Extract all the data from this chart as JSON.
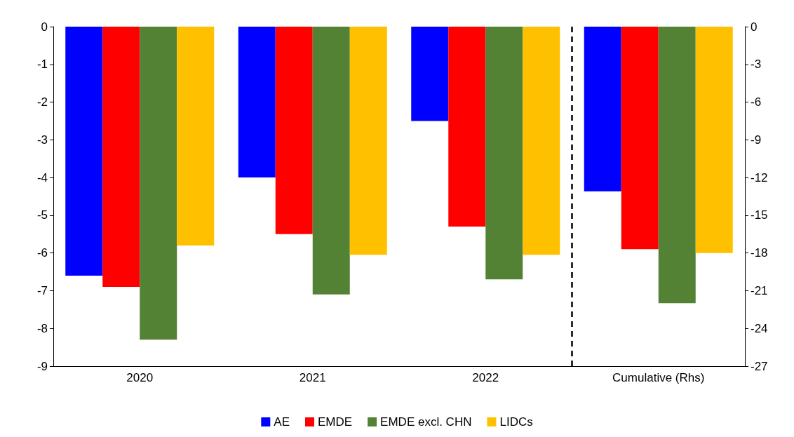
{
  "chart_data": {
    "type": "bar",
    "categories": [
      "2020",
      "2021",
      "2022",
      "Cumulative (Rhs)"
    ],
    "series": [
      {
        "name": "AE",
        "color": "#0000ff",
        "values": [
          -6.6,
          -4.0,
          -2.5,
          null
        ]
      },
      {
        "name": "EMDE",
        "color": "#ff0000",
        "values": [
          -6.9,
          -5.5,
          -5.3,
          null
        ]
      },
      {
        "name": "EMDE excl. CHN",
        "color": "#548235",
        "values": [
          -8.3,
          -7.1,
          -6.7,
          null
        ]
      },
      {
        "name": "LIDCs",
        "color": "#ffc000",
        "values": [
          -5.8,
          -6.05,
          -6.05,
          null
        ]
      },
      {
        "color": "#0000ff",
        "axis": "y2",
        "values": [
          null,
          null,
          null,
          -13.1
        ]
      },
      {
        "color": "#ff0000",
        "axis": "y2",
        "values": [
          null,
          null,
          null,
          -17.7
        ]
      },
      {
        "color": "#548235",
        "axis": "y2",
        "values": [
          null,
          null,
          null,
          -22.0
        ]
      },
      {
        "color": "#ffc000",
        "axis": "y2",
        "values": [
          null,
          null,
          null,
          -18.0
        ]
      }
    ],
    "ylim": [
      -9,
      0
    ],
    "yticks": [
      0,
      -1,
      -2,
      -3,
      -4,
      -5,
      -6,
      -7,
      -8,
      -9
    ],
    "y2lim": [
      -27,
      0
    ],
    "y2ticks": [
      0,
      -3,
      -6,
      -9,
      -12,
      -15,
      -18,
      -21,
      -24,
      -27
    ],
    "grid": false,
    "legend": "bottom"
  }
}
